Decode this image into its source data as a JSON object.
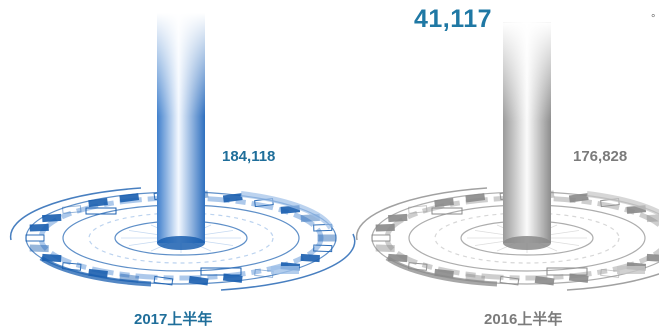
{
  "chart_data": {
    "type": "bar",
    "categories": [
      "2017上半年",
      "2016上半年"
    ],
    "values": [
      184118,
      176828
    ],
    "value_labels": [
      "184,118",
      "176,828"
    ],
    "colors": [
      "#1a5fb0",
      "#8a8a8a"
    ],
    "label_colors": [
      "#1f6e9a",
      "#7b7b7b"
    ],
    "headline_value": "41,117",
    "headline_color": "#1f78a4",
    "title": "",
    "xlabel": "",
    "ylabel": "",
    "grid": false,
    "legend": "none"
  }
}
